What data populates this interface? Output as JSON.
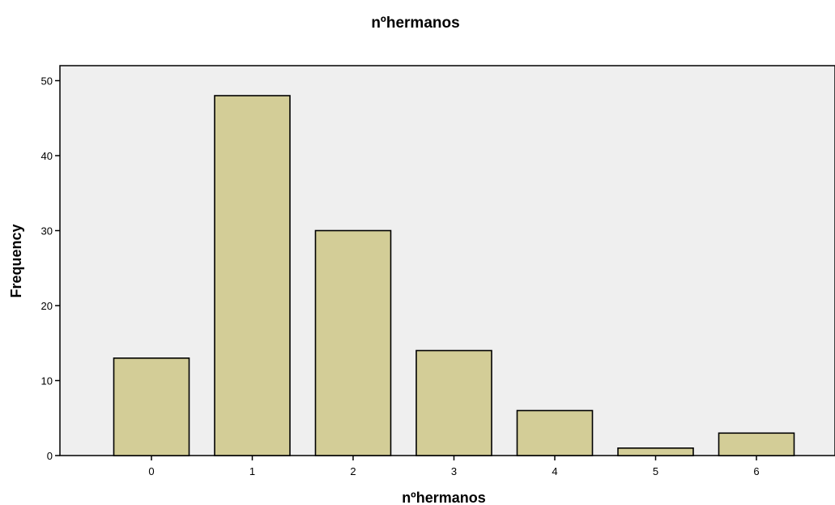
{
  "chart_data": {
    "type": "bar",
    "title": "nºhermanos",
    "xlabel": "nºhermanos",
    "ylabel": "Frequency",
    "categories": [
      "0",
      "1",
      "2",
      "3",
      "4",
      "5",
      "6"
    ],
    "values": [
      13,
      48,
      30,
      14,
      6,
      1,
      3
    ],
    "ylim": [
      0,
      52
    ],
    "yticks": [
      0,
      10,
      20,
      30,
      40,
      50
    ],
    "grid": false,
    "legend": "none",
    "colors": {
      "bar_fill": "#d3cd97",
      "bar_stroke": "#000000",
      "plot_background": "#efefef"
    }
  }
}
